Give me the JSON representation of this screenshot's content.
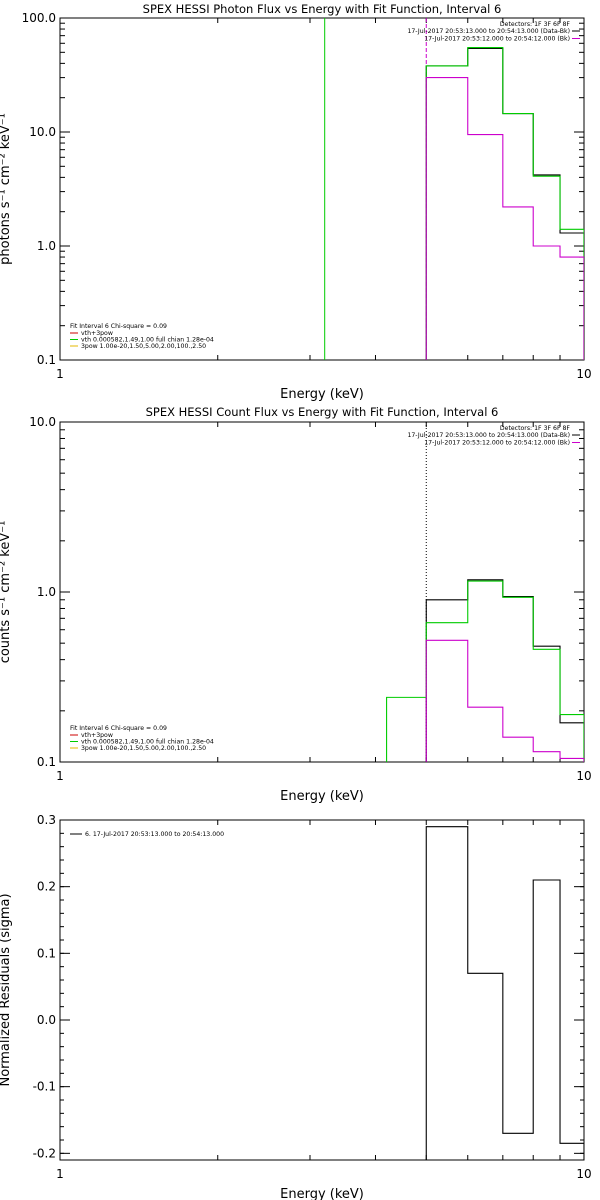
{
  "chart_data": [
    {
      "type": "step",
      "title": "SPEX HESSI Photon Flux vs Energy with Fit Function, Interval 6",
      "xlabel": "Energy (keV)",
      "ylabel": "photons s⁻¹ cm⁻² keV⁻¹",
      "xscale": "log",
      "yscale": "log",
      "xlim": [
        1,
        10
      ],
      "ylim": [
        0.1,
        100
      ],
      "xticks": [
        "1",
        "10"
      ],
      "yticks": [
        {
          "value": 0.1,
          "label": "0.1"
        },
        {
          "value": 1,
          "label": "1.0"
        },
        {
          "value": 10,
          "label": "10.0"
        },
        {
          "value": 100,
          "label": "100.0"
        }
      ],
      "legend_top_right": {
        "header": "Detectors: 1F 3F 6F 8F",
        "entries": [
          {
            "text": "17-Jul-2017 20:53:13.000 to 20:54:13.000 (Data-Bk)",
            "color": "#000000"
          },
          {
            "text": "17-Jul-2017 20:53:12.000 to 20:54:12.000 (Bk)",
            "color": "#cc00cc"
          }
        ]
      },
      "legend_bottom_left": {
        "header": "Fit Interval  6   Chi-square = 0.09",
        "entries": [
          {
            "text": "vth+3pow",
            "color": "#cc0000"
          },
          {
            "text": "vth 0.000582,1.49,1.00   full chian 1.28e-04",
            "color": "#00cc00"
          },
          {
            "text": "3pow 1.00e-20,1.50,5.00,2.00,100.,2.50",
            "color": "#e6b800"
          }
        ]
      },
      "vlines": [
        {
          "x": 3.2,
          "color": "#00cc00",
          "style": "solid"
        },
        {
          "x": 5.0,
          "color": "#cc00cc",
          "style": "dashed"
        }
      ],
      "series": [
        {
          "color": "#000000",
          "edges": [
            5.0,
            6.0,
            7.0,
            8.0,
            9.0,
            10.0
          ],
          "values": [
            38,
            54,
            14.5,
            4.2,
            1.3
          ]
        },
        {
          "color": "#00cc00",
          "edges": [
            5.0,
            6.0,
            7.0,
            8.0,
            9.0,
            10.0
          ],
          "values": [
            38,
            55,
            14.5,
            4.1,
            1.4
          ]
        },
        {
          "color": "#cc00cc",
          "edges": [
            5.0,
            6.0,
            7.0,
            8.0,
            9.0,
            10.0
          ],
          "values": [
            30,
            9.5,
            2.2,
            1.0,
            0.8
          ]
        }
      ]
    },
    {
      "type": "step",
      "title": "SPEX HESSI Count Flux vs Energy with Fit Function, Interval 6",
      "xlabel": "Energy (keV)",
      "ylabel": "counts s⁻¹ cm⁻² keV⁻¹",
      "xscale": "log",
      "yscale": "log",
      "xlim": [
        1,
        10
      ],
      "ylim": [
        0.1,
        10
      ],
      "xticks": [
        "1",
        "10"
      ],
      "yticks": [
        {
          "value": 0.1,
          "label": "0.1"
        },
        {
          "value": 1,
          "label": "1.0"
        },
        {
          "value": 10,
          "label": "10.0"
        }
      ],
      "legend_top_right": {
        "header": "Detectors: 1F 3F 6F 8F",
        "entries": [
          {
            "text": "17-Jul-2017 20:53:13.000 to 20:54:13.000 (Data-Bk)",
            "color": "#000000"
          },
          {
            "text": "17-Jul-2017 20:53:12.000 to 20:54:12.000 (Bk)",
            "color": "#cc00cc"
          }
        ]
      },
      "legend_bottom_left": {
        "header": "Fit Interval  6   Chi-square = 0.09",
        "entries": [
          {
            "text": "vth+3pow",
            "color": "#cc0000"
          },
          {
            "text": "vth 0.000582,1.49,1.00   full chian 1.28e-04",
            "color": "#00cc00"
          },
          {
            "text": "3pow 1.00e-20,1.50,5.00,2.00,100.,2.50",
            "color": "#e6b800"
          }
        ]
      },
      "vlines": [
        {
          "x": 5.0,
          "color": "#000000",
          "style": "dotted"
        }
      ],
      "series": [
        {
          "color": "#000000",
          "edges": [
            5.0,
            6.0,
            7.0,
            8.0,
            9.0,
            10.0
          ],
          "values": [
            0.9,
            1.18,
            0.94,
            0.48,
            0.17
          ]
        },
        {
          "color": "#00cc00",
          "edges": [
            4.2,
            5.0,
            6.0,
            7.0,
            8.0,
            9.0,
            10.0
          ],
          "values": [
            0.24,
            0.66,
            1.16,
            0.93,
            0.46,
            0.19
          ]
        },
        {
          "color": "#cc00cc",
          "edges": [
            5.0,
            6.0,
            7.0,
            8.0,
            9.0,
            10.0
          ],
          "values": [
            0.52,
            0.21,
            0.14,
            0.115,
            0.105
          ]
        }
      ]
    },
    {
      "type": "step",
      "title": "",
      "xlabel": "Energy (keV)",
      "ylabel": "Normalized Residuals (sigma)",
      "xscale": "log",
      "yscale": "linear",
      "xlim": [
        1,
        10
      ],
      "ylim": [
        -0.21,
        0.3
      ],
      "xticks": [
        "1",
        "10"
      ],
      "yticks": [
        {
          "value": -0.2,
          "label": "-0.2"
        },
        {
          "value": -0.1,
          "label": "-0.1"
        },
        {
          "value": 0.0,
          "label": "0.0"
        },
        {
          "value": 0.1,
          "label": "0.1"
        },
        {
          "value": 0.2,
          "label": "0.2"
        },
        {
          "value": 0.3,
          "label": "0.3"
        }
      ],
      "legend_top_left": {
        "entries": [
          {
            "text": "6. 17-Jul-2017 20:53:13.000 to 20:54:13.000",
            "color": "#000000"
          }
        ]
      },
      "series": [
        {
          "color": "#000000",
          "edges": [
            5.0,
            6.0,
            7.0,
            8.0,
            9.0,
            10.0
          ],
          "values": [
            0.29,
            0.07,
            -0.17,
            0.21,
            -0.185
          ]
        }
      ]
    }
  ]
}
